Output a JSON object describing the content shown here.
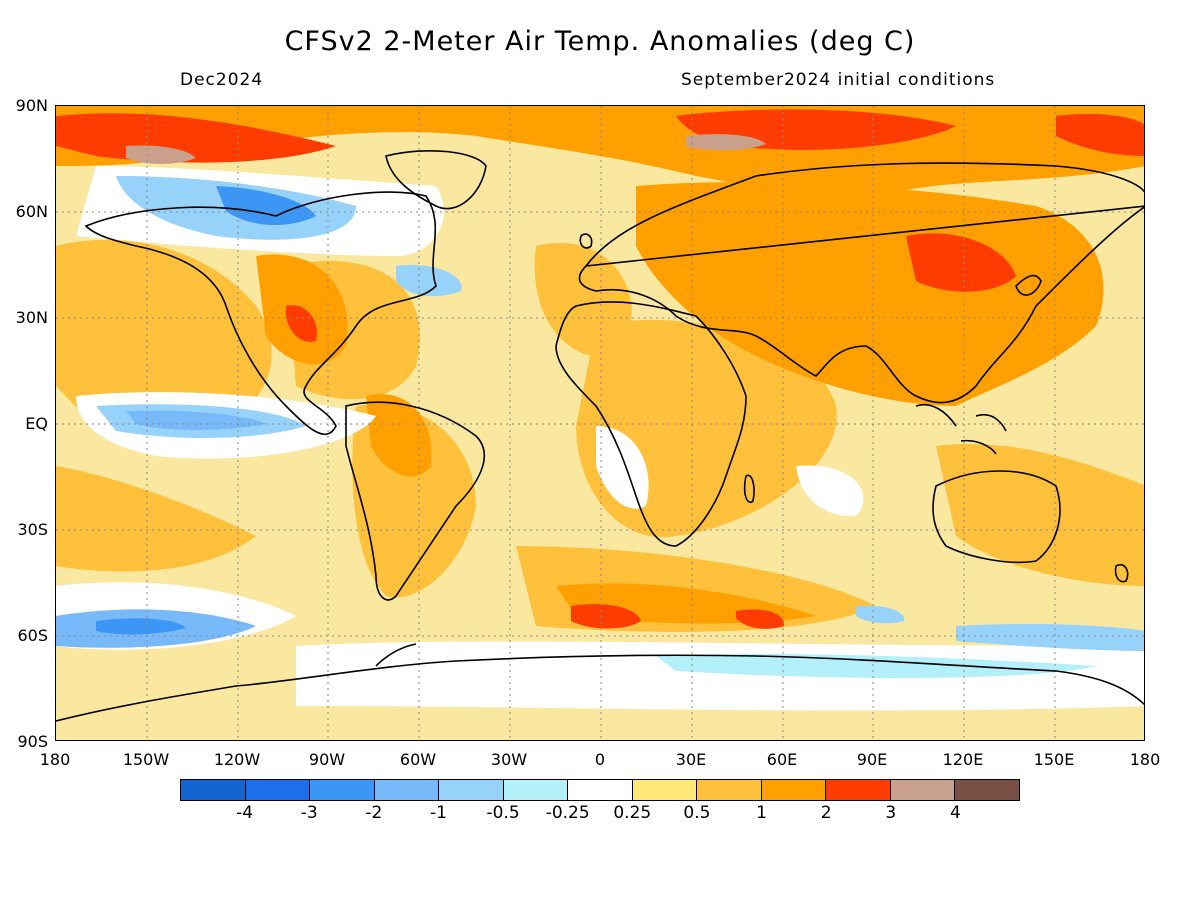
{
  "title": "CFSv2 2-Meter Air Temp. Anomalies (deg C)",
  "subtitle_left": "Dec2024",
  "subtitle_right": "September2024 initial conditions",
  "lat_labels": [
    "90N",
    "60N",
    "30N",
    "EQ",
    "30S",
    "60S",
    "90S"
  ],
  "lon_labels": [
    "180",
    "150W",
    "120W",
    "90W",
    "60W",
    "30W",
    "0",
    "30E",
    "60E",
    "90E",
    "120E",
    "150E",
    "180"
  ],
  "colorbar": {
    "colors": [
      "#1464d2",
      "#1e6eeb",
      "#3c96f5",
      "#78b9fa",
      "#96d2fa",
      "#b4f0fa",
      "#ffffff",
      "#ffe878",
      "#ffc03c",
      "#ffa000",
      "#ff3c00",
      "#c8a08c",
      "#7a5046"
    ],
    "labels": [
      "-4",
      "-3",
      "-2",
      "-1",
      "-0.5",
      "-0.25",
      "0.25",
      "0.5",
      "1",
      "2",
      "3",
      "4"
    ]
  }
}
